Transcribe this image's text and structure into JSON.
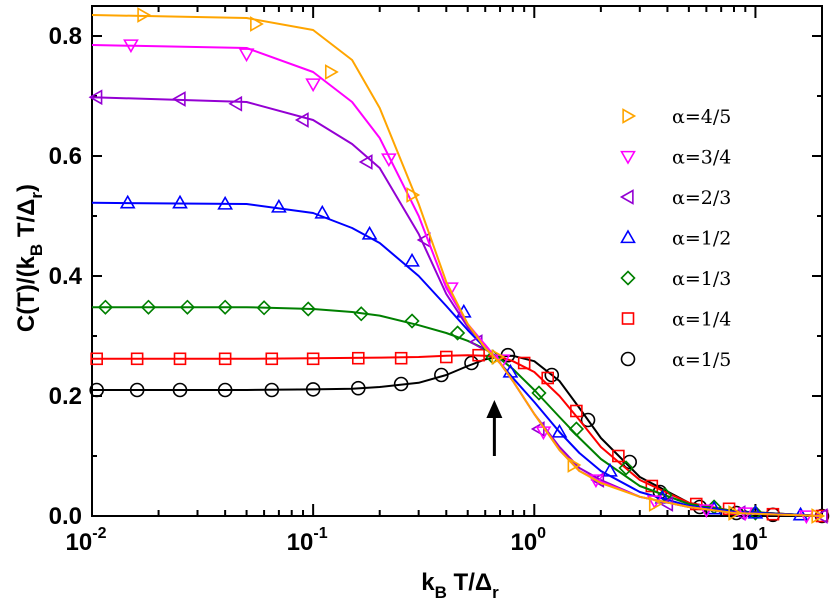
{
  "chart_data": {
    "type": "line",
    "x_scale": "log",
    "xlim": [
      0.01,
      20
    ],
    "ylim": [
      0,
      0.85
    ],
    "xlabel": "k_B T/Δ_r",
    "ylabel": "C(T)/(k_B T/Δ_r)",
    "x_tick_labels": [
      {
        "base": "10",
        "exp": "-2",
        "value": 0.01
      },
      {
        "base": "10",
        "exp": "-1",
        "value": 0.1
      },
      {
        "base": "10",
        "exp": "0",
        "value": 1
      },
      {
        "base": "10",
        "exp": "1",
        "value": 10
      }
    ],
    "y_ticks": [
      0.0,
      0.2,
      0.4,
      0.6,
      0.8
    ],
    "y_tick_labels": [
      "0.0",
      "0.2",
      "0.4",
      "0.6",
      "0.8"
    ],
    "annotation": {
      "type": "arrow",
      "x": 0.66,
      "y_from": 0.1,
      "y_to": 0.18,
      "direction": "up"
    },
    "legend_position": "right",
    "series": [
      {
        "name": "α=4/5",
        "color": "#ffa500",
        "marker": "triangle-right",
        "line": [
          [
            0.01,
            0.835
          ],
          [
            0.05,
            0.83
          ],
          [
            0.1,
            0.81
          ],
          [
            0.15,
            0.76
          ],
          [
            0.2,
            0.68
          ],
          [
            0.3,
            0.52
          ],
          [
            0.4,
            0.39
          ],
          [
            0.5,
            0.32
          ],
          [
            0.6,
            0.28
          ],
          [
            0.7,
            0.255
          ],
          [
            0.8,
            0.225
          ],
          [
            1.0,
            0.17
          ],
          [
            1.3,
            0.11
          ],
          [
            1.6,
            0.075
          ],
          [
            2.0,
            0.055
          ],
          [
            3.0,
            0.032
          ],
          [
            5.0,
            0.015
          ],
          [
            8.0,
            0.005
          ],
          [
            20,
            0.0
          ]
        ],
        "points": [
          [
            0.017,
            0.835
          ],
          [
            0.055,
            0.82
          ],
          [
            0.12,
            0.74
          ],
          [
            0.28,
            0.535
          ],
          [
            0.68,
            0.265
          ],
          [
            1.5,
            0.085
          ],
          [
            3.5,
            0.02
          ],
          [
            8.0,
            0.005
          ],
          [
            19,
            0.0
          ]
        ]
      },
      {
        "name": "α=3/4",
        "color": "#ff00ff",
        "marker": "triangle-down",
        "line": [
          [
            0.01,
            0.785
          ],
          [
            0.05,
            0.78
          ],
          [
            0.1,
            0.74
          ],
          [
            0.15,
            0.69
          ],
          [
            0.2,
            0.63
          ],
          [
            0.3,
            0.5
          ],
          [
            0.4,
            0.38
          ],
          [
            0.5,
            0.32
          ],
          [
            0.6,
            0.285
          ],
          [
            0.7,
            0.255
          ],
          [
            0.8,
            0.225
          ],
          [
            1.0,
            0.17
          ],
          [
            1.3,
            0.11
          ],
          [
            1.6,
            0.075
          ],
          [
            2.0,
            0.057
          ],
          [
            3.0,
            0.032
          ],
          [
            5.0,
            0.015
          ],
          [
            8.0,
            0.005
          ],
          [
            20,
            0.0
          ]
        ],
        "points": [
          [
            0.015,
            0.785
          ],
          [
            0.05,
            0.77
          ],
          [
            0.1,
            0.72
          ],
          [
            0.22,
            0.595
          ],
          [
            0.42,
            0.38
          ],
          [
            0.72,
            0.26
          ],
          [
            1.1,
            0.14
          ],
          [
            1.9,
            0.06
          ],
          [
            3.5,
            0.025
          ],
          [
            6.0,
            0.01
          ],
          [
            9.0,
            0.005
          ],
          [
            17,
            0.0
          ]
        ]
      },
      {
        "name": "α=2/3",
        "color": "#9400d3",
        "marker": "triangle-left",
        "line": [
          [
            0.01,
            0.698
          ],
          [
            0.05,
            0.69
          ],
          [
            0.1,
            0.66
          ],
          [
            0.15,
            0.62
          ],
          [
            0.2,
            0.58
          ],
          [
            0.3,
            0.47
          ],
          [
            0.4,
            0.37
          ],
          [
            0.5,
            0.315
          ],
          [
            0.6,
            0.285
          ],
          [
            0.7,
            0.255
          ],
          [
            0.8,
            0.225
          ],
          [
            1.0,
            0.17
          ],
          [
            1.3,
            0.115
          ],
          [
            1.6,
            0.08
          ],
          [
            2.0,
            0.06
          ],
          [
            3.0,
            0.032
          ],
          [
            5.0,
            0.015
          ],
          [
            8.0,
            0.005
          ],
          [
            20,
            0.0
          ]
        ],
        "points": [
          [
            0.0105,
            0.698
          ],
          [
            0.025,
            0.695
          ],
          [
            0.045,
            0.687
          ],
          [
            0.09,
            0.66
          ],
          [
            0.175,
            0.59
          ],
          [
            0.32,
            0.46
          ],
          [
            0.55,
            0.29
          ],
          [
            1.05,
            0.145
          ],
          [
            1.95,
            0.06
          ],
          [
            4.0,
            0.02
          ],
          [
            8.5,
            0.005
          ],
          [
            20,
            0.0
          ]
        ]
      },
      {
        "name": "α=1/2",
        "color": "#0000ff",
        "marker": "triangle-up",
        "line": [
          [
            0.01,
            0.522
          ],
          [
            0.05,
            0.52
          ],
          [
            0.1,
            0.505
          ],
          [
            0.15,
            0.48
          ],
          [
            0.2,
            0.455
          ],
          [
            0.3,
            0.4
          ],
          [
            0.4,
            0.35
          ],
          [
            0.5,
            0.31
          ],
          [
            0.6,
            0.28
          ],
          [
            0.7,
            0.255
          ],
          [
            0.8,
            0.23
          ],
          [
            1.0,
            0.19
          ],
          [
            1.3,
            0.14
          ],
          [
            1.6,
            0.105
          ],
          [
            2.0,
            0.075
          ],
          [
            3.0,
            0.04
          ],
          [
            5.0,
            0.017
          ],
          [
            8.0,
            0.007
          ],
          [
            20,
            0.0
          ]
        ],
        "points": [
          [
            0.0145,
            0.522
          ],
          [
            0.025,
            0.522
          ],
          [
            0.04,
            0.52
          ],
          [
            0.07,
            0.515
          ],
          [
            0.11,
            0.505
          ],
          [
            0.18,
            0.47
          ],
          [
            0.28,
            0.425
          ],
          [
            0.48,
            0.34
          ],
          [
            0.78,
            0.24
          ],
          [
            1.3,
            0.14
          ],
          [
            2.2,
            0.075
          ],
          [
            3.8,
            0.03
          ],
          [
            6.5,
            0.012
          ],
          [
            10,
            0.005
          ],
          [
            16,
            0.002
          ]
        ]
      },
      {
        "name": "α=1/3",
        "color": "#008000",
        "marker": "diamond",
        "line": [
          [
            0.01,
            0.348
          ],
          [
            0.05,
            0.348
          ],
          [
            0.1,
            0.345
          ],
          [
            0.15,
            0.34
          ],
          [
            0.2,
            0.334
          ],
          [
            0.3,
            0.318
          ],
          [
            0.4,
            0.305
          ],
          [
            0.5,
            0.292
          ],
          [
            0.6,
            0.278
          ],
          [
            0.7,
            0.262
          ],
          [
            0.8,
            0.245
          ],
          [
            1.0,
            0.21
          ],
          [
            1.3,
            0.165
          ],
          [
            1.6,
            0.13
          ],
          [
            2.0,
            0.095
          ],
          [
            3.0,
            0.05
          ],
          [
            5.0,
            0.02
          ],
          [
            8.0,
            0.008
          ],
          [
            20,
            0.0
          ]
        ],
        "points": [
          [
            0.0115,
            0.348
          ],
          [
            0.018,
            0.348
          ],
          [
            0.027,
            0.348
          ],
          [
            0.04,
            0.348
          ],
          [
            0.06,
            0.347
          ],
          [
            0.095,
            0.345
          ],
          [
            0.165,
            0.337
          ],
          [
            0.28,
            0.325
          ],
          [
            0.45,
            0.305
          ],
          [
            0.65,
            0.265
          ],
          [
            1.05,
            0.205
          ],
          [
            1.55,
            0.145
          ],
          [
            2.6,
            0.08
          ],
          [
            3.9,
            0.035
          ],
          [
            6.5,
            0.015
          ],
          [
            10,
            0.005
          ]
        ]
      },
      {
        "name": "α=1/4",
        "color": "#ff0000",
        "marker": "square",
        "line": [
          [
            0.01,
            0.262
          ],
          [
            0.05,
            0.262
          ],
          [
            0.1,
            0.263
          ],
          [
            0.2,
            0.264
          ],
          [
            0.3,
            0.265
          ],
          [
            0.4,
            0.267
          ],
          [
            0.5,
            0.268
          ],
          [
            0.6,
            0.267
          ],
          [
            0.7,
            0.265
          ],
          [
            0.8,
            0.258
          ],
          [
            1.0,
            0.24
          ],
          [
            1.3,
            0.2
          ],
          [
            1.6,
            0.16
          ],
          [
            2.0,
            0.115
          ],
          [
            3.0,
            0.06
          ],
          [
            5.0,
            0.022
          ],
          [
            8.0,
            0.008
          ],
          [
            20,
            0.0
          ]
        ],
        "points": [
          [
            0.0105,
            0.262
          ],
          [
            0.016,
            0.262
          ],
          [
            0.025,
            0.262
          ],
          [
            0.04,
            0.262
          ],
          [
            0.065,
            0.262
          ],
          [
            0.1,
            0.262
          ],
          [
            0.16,
            0.263
          ],
          [
            0.25,
            0.263
          ],
          [
            0.4,
            0.265
          ],
          [
            0.56,
            0.268
          ],
          [
            0.9,
            0.255
          ],
          [
            1.15,
            0.23
          ],
          [
            1.55,
            0.175
          ],
          [
            2.4,
            0.1
          ],
          [
            3.4,
            0.05
          ],
          [
            5.4,
            0.02
          ],
          [
            7.6,
            0.012
          ],
          [
            12,
            0.003
          ],
          [
            20,
            0.0
          ]
        ]
      },
      {
        "name": "α=1/5",
        "color": "#000000",
        "marker": "circle",
        "line": [
          [
            0.01,
            0.21
          ],
          [
            0.05,
            0.21
          ],
          [
            0.1,
            0.211
          ],
          [
            0.15,
            0.212
          ],
          [
            0.2,
            0.215
          ],
          [
            0.3,
            0.222
          ],
          [
            0.4,
            0.235
          ],
          [
            0.5,
            0.25
          ],
          [
            0.6,
            0.261
          ],
          [
            0.7,
            0.266
          ],
          [
            0.8,
            0.267
          ],
          [
            1.0,
            0.258
          ],
          [
            1.3,
            0.225
          ],
          [
            1.6,
            0.18
          ],
          [
            2.0,
            0.13
          ],
          [
            3.0,
            0.065
          ],
          [
            5.0,
            0.022
          ],
          [
            8.0,
            0.008
          ],
          [
            20,
            0.0
          ]
        ],
        "points": [
          [
            0.0105,
            0.21
          ],
          [
            0.016,
            0.21
          ],
          [
            0.025,
            0.21
          ],
          [
            0.04,
            0.21
          ],
          [
            0.065,
            0.21
          ],
          [
            0.1,
            0.211
          ],
          [
            0.16,
            0.213
          ],
          [
            0.25,
            0.22
          ],
          [
            0.38,
            0.235
          ],
          [
            0.52,
            0.255
          ],
          [
            0.76,
            0.268
          ],
          [
            1.2,
            0.235
          ],
          [
            1.75,
            0.16
          ],
          [
            2.7,
            0.09
          ],
          [
            3.7,
            0.04
          ],
          [
            5.6,
            0.015
          ],
          [
            8.2,
            0.005
          ],
          [
            12,
            0.002
          ],
          [
            20,
            0.0
          ]
        ]
      }
    ]
  }
}
